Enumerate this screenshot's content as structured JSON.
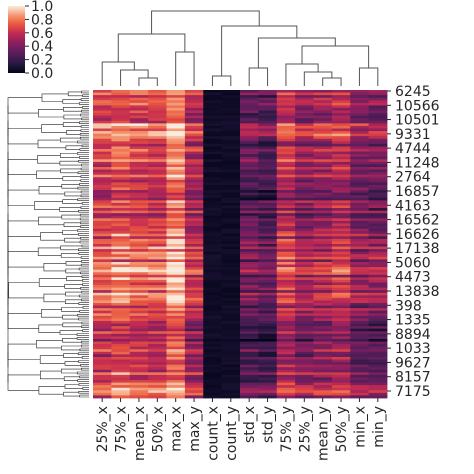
{
  "chart_data": {
    "type": "heatmap",
    "title": "",
    "columns": [
      "25%_x",
      "75%_x",
      "mean_x",
      "50%_x",
      "max_x",
      "max_y",
      "count_x",
      "count_y",
      "std_x",
      "std_y",
      "75%_y",
      "25%_y",
      "mean_y",
      "50%_y",
      "min_x",
      "min_y"
    ],
    "row_labels": [
      "6245",
      "10566",
      "10501",
      "9331",
      "4744",
      "11248",
      "2764",
      "16857",
      "4163",
      "16562",
      "16626",
      "17138",
      "5060",
      "4473",
      "13838",
      "398",
      "1335",
      "8894",
      "1033",
      "9627",
      "8157",
      "7175"
    ],
    "colorbar": {
      "min": 0.0,
      "max": 1.0,
      "ticks": [
        "0.0",
        "0.2",
        "0.4",
        "0.6",
        "0.8",
        "1.0"
      ]
    },
    "column_mean_values": [
      0.66,
      0.72,
      0.68,
      0.65,
      0.82,
      0.55,
      0.02,
      0.04,
      0.32,
      0.26,
      0.58,
      0.45,
      0.5,
      0.55,
      0.4,
      0.38
    ],
    "colormap": "rocket",
    "dendrogram_rows": true,
    "dendrogram_columns": true,
    "grid": false
  }
}
